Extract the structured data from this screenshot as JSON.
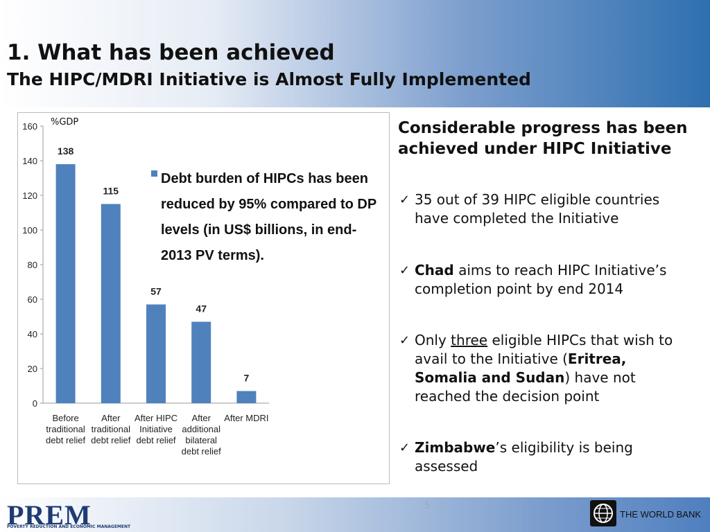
{
  "header": {
    "title": "1. What has been achieved",
    "subtitle": "The HIPC/MDRI Initiative is Almost Fully Implemented"
  },
  "chart_data": {
    "type": "bar",
    "y_label": "%GDP",
    "annotation": "Debt burden of HIPCs has been reduced by 95% compared to DP levels (in US$ billions, in end-2013 PV terms).",
    "categories": [
      "Before traditional debt relief",
      "After traditional debt relief",
      "After HIPC Initiative debt relief",
      "After additional bilateral debt relief",
      "After MDRI"
    ],
    "values": [
      138,
      115,
      57,
      47,
      7
    ],
    "color": "#4f81bd",
    "ylim": [
      0,
      160
    ],
    "yticks": [
      0,
      20,
      40,
      60,
      80,
      100,
      120,
      140,
      160
    ],
    "grid": false
  },
  "panel": {
    "heading": "Considerable progress has been achieved under HIPC Initiative",
    "bullets": [
      [
        {
          "text": "35 out of 39 HIPC eligible countries have completed the Initiative",
          "style": "normal"
        }
      ],
      [
        {
          "text": "Chad",
          "style": "bold"
        },
        {
          "text": " aims to reach HIPC Initiative’s completion point by end 2014",
          "style": "normal"
        }
      ],
      [
        {
          "text": "Only ",
          "style": "normal"
        },
        {
          "text": "three",
          "style": "underline"
        },
        {
          "text": " eligible HIPCs that wish to avail to the Initiative (",
          "style": "normal"
        },
        {
          "text": "Eritrea, Somalia and Sudan",
          "style": "bold"
        },
        {
          "text": ") have not reached the decision point",
          "style": "normal"
        }
      ],
      [
        {
          "text": "Zimbabwe",
          "style": "bold"
        },
        {
          "text": "’s eligibility is being assessed",
          "style": "normal"
        }
      ]
    ]
  },
  "footer": {
    "page": "5",
    "logo": "PREM",
    "logo_caption": "POVERTY REDUCTION AND ECONOMIC MANAGEMENT",
    "bank": "THE WORLD BANK"
  }
}
